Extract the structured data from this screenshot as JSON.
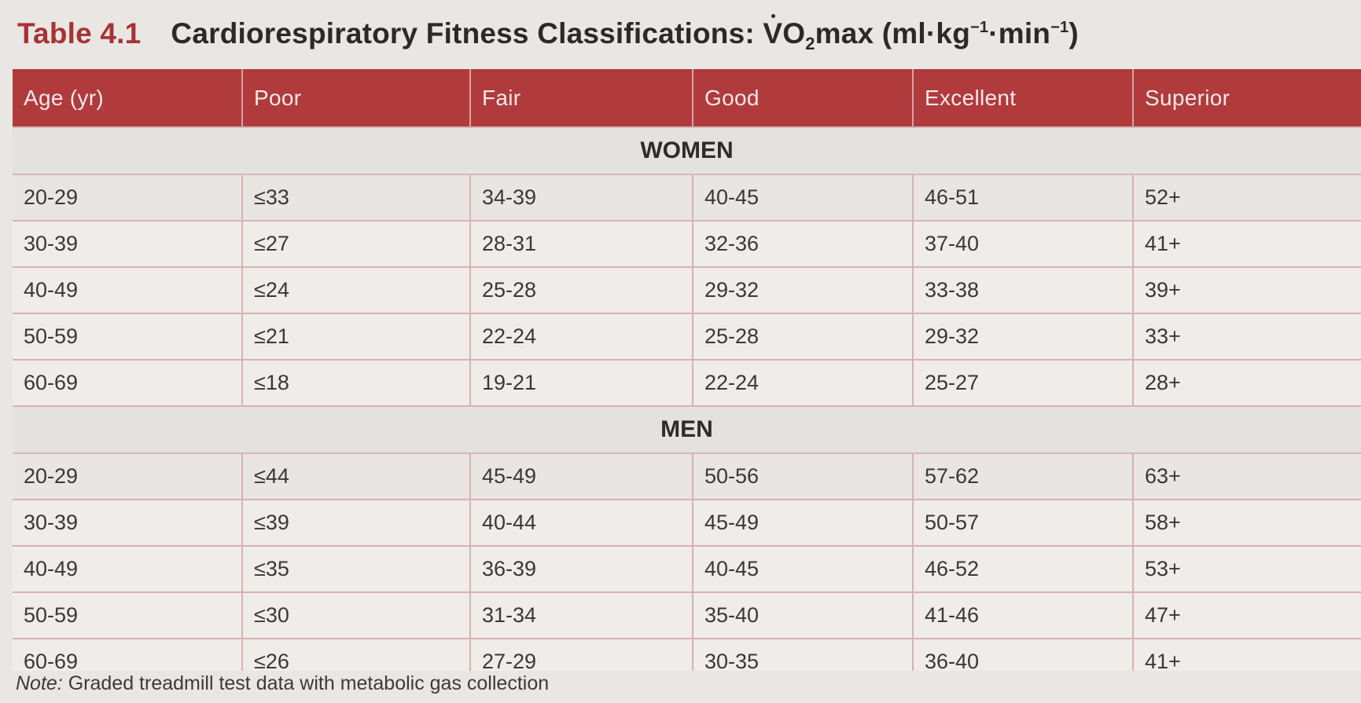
{
  "title": {
    "label": "Table 4.1",
    "text_pre": "Cardiorespiratory Fitness Classifications: ",
    "v": "V",
    "o": "O",
    "sub2": "2",
    "max_unit_pre": "max (ml·kg",
    "sup1": "−1",
    "unit_mid": "·min",
    "sup2": "−1",
    "unit_end": ")"
  },
  "headers": [
    "Age (yr)",
    "Poor",
    "Fair",
    "Good",
    "Excellent",
    "Superior"
  ],
  "sections": [
    {
      "name": "WOMEN",
      "rows": [
        [
          "20-29",
          "≤33",
          "34-39",
          "40-45",
          "46-51",
          "52+"
        ],
        [
          "30-39",
          "≤27",
          "28-31",
          "32-36",
          "37-40",
          "41+"
        ],
        [
          "40-49",
          "≤24",
          "25-28",
          "29-32",
          "33-38",
          "39+"
        ],
        [
          "50-59",
          "≤21",
          "22-24",
          "25-28",
          "29-32",
          "33+"
        ],
        [
          "60-69",
          "≤18",
          "19-21",
          "22-24",
          "25-27",
          "28+"
        ]
      ]
    },
    {
      "name": "MEN",
      "rows": [
        [
          "20-29",
          "≤44",
          "45-49",
          "50-56",
          "57-62",
          "63+"
        ],
        [
          "30-39",
          "≤39",
          "40-44",
          "45-49",
          "50-57",
          "58+"
        ],
        [
          "40-49",
          "≤35",
          "36-39",
          "40-45",
          "46-52",
          "53+"
        ],
        [
          "50-59",
          "≤30",
          "31-34",
          "35-40",
          "41-46",
          "47+"
        ],
        [
          "60-69",
          "≤26",
          "27-29",
          "30-35",
          "36-40",
          "41+"
        ]
      ]
    }
  ],
  "note": {
    "label": "Note:",
    "text": " Graded treadmill test data with metabolic gas collection"
  },
  "colors": {
    "title_label": "#a63333",
    "header_bg": "#b03a3c",
    "grid_line": "#d6b2b2"
  }
}
